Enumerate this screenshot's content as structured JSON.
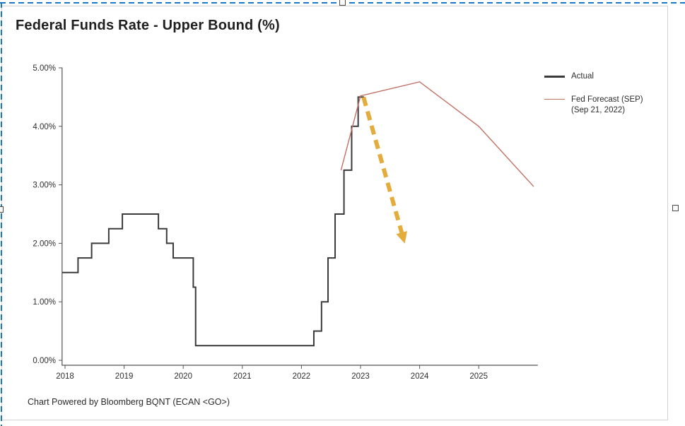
{
  "title": "Federal Funds Rate - Upper Bound (%)",
  "footer": "Chart Powered by Bloomberg BQNT (ECAN <GO>)",
  "colors": {
    "actual": "#3a3a3a",
    "forecast": "#bf7265",
    "arrow": "#e2a62d",
    "axis": "#555555",
    "card_border": "#d2d2d2",
    "selection": "#1b78c8"
  },
  "legend": [
    {
      "lines": [
        "Actual"
      ],
      "color": "#3a3a3a"
    },
    {
      "lines": [
        "Fed Forecast (SEP)",
        "(Sep 21, 2022)"
      ],
      "color": "#bf7265"
    }
  ],
  "chart_data": {
    "type": "line",
    "title": "Federal Funds Rate - Upper Bound (%)",
    "xlabel": "",
    "ylabel": "",
    "xlim": [
      2017.95,
      2026.0
    ],
    "ylim": [
      0,
      5
    ],
    "grid": false,
    "legend_position": "right",
    "x_tick_labels": [
      "2018",
      "2019",
      "2020",
      "2021",
      "2022",
      "2023",
      "2024",
      "2025"
    ],
    "y_tick_labels": [
      "0.00%",
      "1.00%",
      "2.00%",
      "3.00%",
      "4.00%",
      "5.00%"
    ],
    "series": [
      {
        "name": "Actual",
        "style": "step",
        "color": "#3a3a3a",
        "width": 2,
        "points": [
          [
            2017.95,
            1.5
          ],
          [
            2018.22,
            1.75
          ],
          [
            2018.45,
            2.0
          ],
          [
            2018.74,
            2.25
          ],
          [
            2018.97,
            2.5
          ],
          [
            2019.58,
            2.25
          ],
          [
            2019.72,
            2.0
          ],
          [
            2019.83,
            1.75
          ],
          [
            2020.17,
            1.25
          ],
          [
            2020.21,
            0.25
          ],
          [
            2022.21,
            0.5
          ],
          [
            2022.34,
            1.0
          ],
          [
            2022.45,
            1.75
          ],
          [
            2022.57,
            2.5
          ],
          [
            2022.72,
            3.25
          ],
          [
            2022.85,
            4.0
          ],
          [
            2022.96,
            4.5
          ],
          [
            2023.06,
            4.5
          ]
        ]
      },
      {
        "name": "Fed Forecast (SEP) (Sep 21, 2022)",
        "style": "line",
        "color": "#bf7265",
        "width": 1.4,
        "points": [
          [
            2022.67,
            3.25
          ],
          [
            2023.0,
            4.52
          ],
          [
            2024.0,
            4.76
          ],
          [
            2025.0,
            4.0
          ],
          [
            2025.93,
            2.97
          ]
        ]
      }
    ],
    "annotation_arrow": {
      "from": [
        2023.05,
        4.5
      ],
      "to": [
        2023.72,
        2.1
      ],
      "color": "#e2a62d",
      "style": "dashed"
    }
  }
}
